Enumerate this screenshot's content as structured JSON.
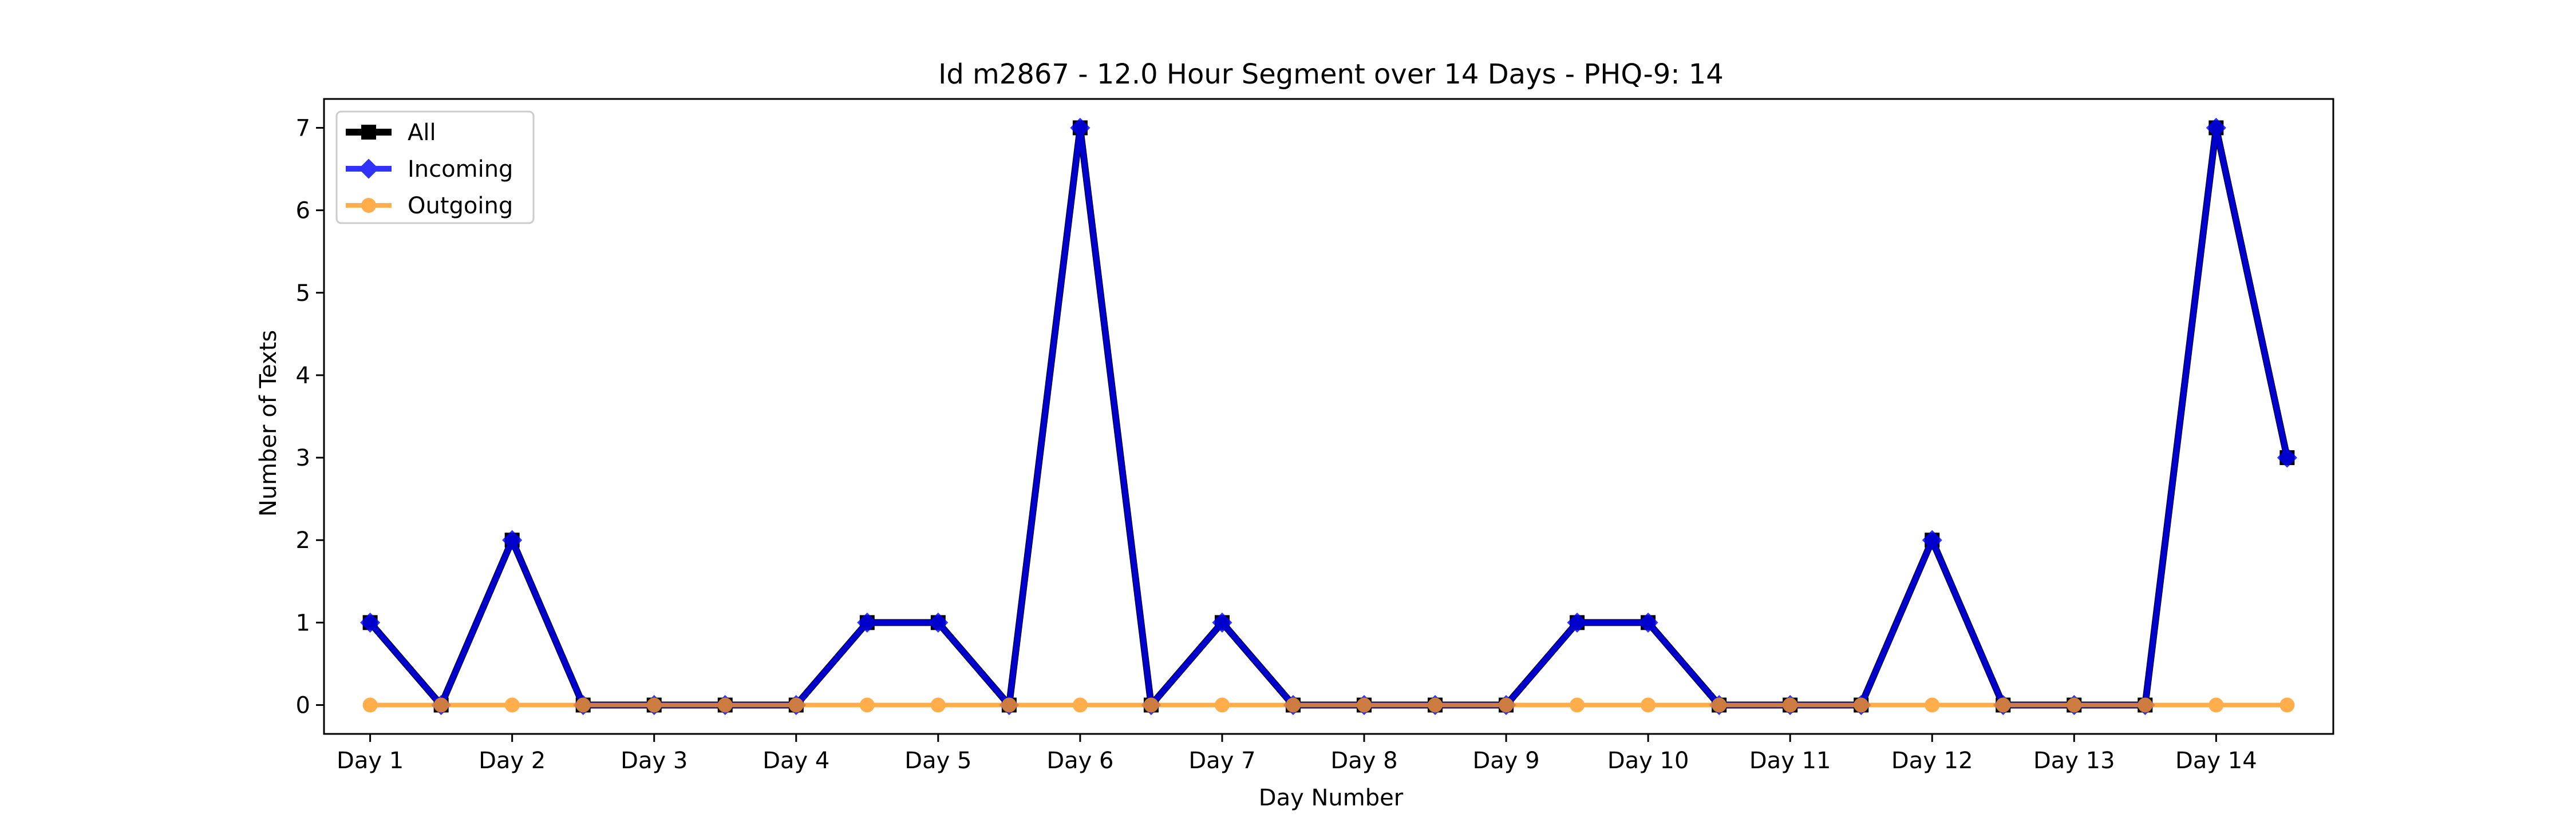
{
  "chart_data": {
    "type": "line",
    "title": "Id m2867 - 12.0 Hour Segment over 14 Days - PHQ-9: 14",
    "xlabel": "Day Number",
    "ylabel": "Number of Texts",
    "x_count": 28,
    "x_tick_labels": [
      "Day 1",
      "Day 2",
      "Day 3",
      "Day 4",
      "Day 5",
      "Day 6",
      "Day 7",
      "Day 8",
      "Day 9",
      "Day 10",
      "Day 11",
      "Day 12",
      "Day 13",
      "Day 14"
    ],
    "x_tick_positions": [
      0,
      2,
      4,
      6,
      8,
      10,
      12,
      14,
      16,
      18,
      20,
      22,
      24,
      26
    ],
    "ylim": [
      -0.35,
      7.35
    ],
    "y_ticks": [
      0,
      1,
      2,
      3,
      4,
      5,
      6,
      7
    ],
    "grid": false,
    "legend_position": "upper-left",
    "series": [
      {
        "name": "All",
        "color": "#000000",
        "marker": "square",
        "values": [
          1,
          0,
          2,
          0,
          0,
          0,
          0,
          1,
          1,
          0,
          7,
          0,
          1,
          0,
          0,
          0,
          0,
          1,
          1,
          0,
          0,
          0,
          2,
          0,
          0,
          0,
          7,
          3
        ]
      },
      {
        "name": "Incoming",
        "color": "#0000ff",
        "marker": "diamond",
        "values": [
          1,
          0,
          2,
          0,
          0,
          0,
          0,
          1,
          1,
          0,
          7,
          0,
          1,
          0,
          0,
          0,
          0,
          1,
          1,
          0,
          0,
          0,
          2,
          0,
          0,
          0,
          7,
          3
        ]
      },
      {
        "name": "Outgoing",
        "color": "#ff9a1f",
        "marker": "circle",
        "values": [
          0,
          0,
          0,
          0,
          0,
          0,
          0,
          0,
          0,
          0,
          0,
          0,
          0,
          0,
          0,
          0,
          0,
          0,
          0,
          0,
          0,
          0,
          0,
          0,
          0,
          0,
          0,
          0
        ]
      }
    ]
  }
}
